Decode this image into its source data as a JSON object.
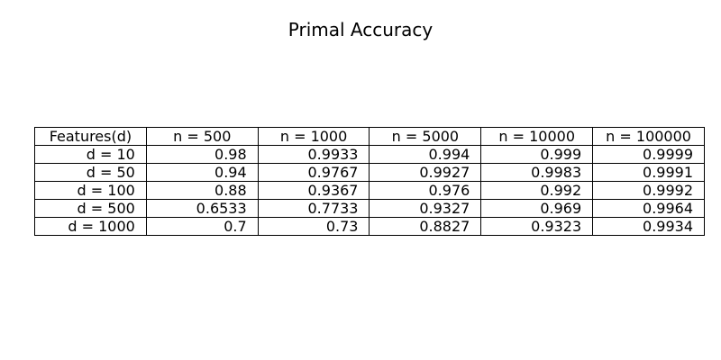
{
  "chart_data": {
    "type": "table",
    "title": "Primal Accuracy",
    "columns": [
      "Features(d)",
      "n = 500",
      "n = 1000",
      "n = 5000",
      "n = 10000",
      "n = 100000"
    ],
    "rows": [
      [
        "d = 10",
        "0.98",
        "0.9933",
        "0.994",
        "0.999",
        "0.9999"
      ],
      [
        "d = 50",
        "0.94",
        "0.9767",
        "0.9927",
        "0.9983",
        "0.9991"
      ],
      [
        "d = 100",
        "0.88",
        "0.9367",
        "0.976",
        "0.992",
        "0.9992"
      ],
      [
        "d = 500",
        "0.6533",
        "0.7733",
        "0.9327",
        "0.969",
        "0.9964"
      ],
      [
        "d = 1000",
        "0.7",
        "0.73",
        "0.8827",
        "0.9323",
        "0.9934"
      ]
    ]
  }
}
